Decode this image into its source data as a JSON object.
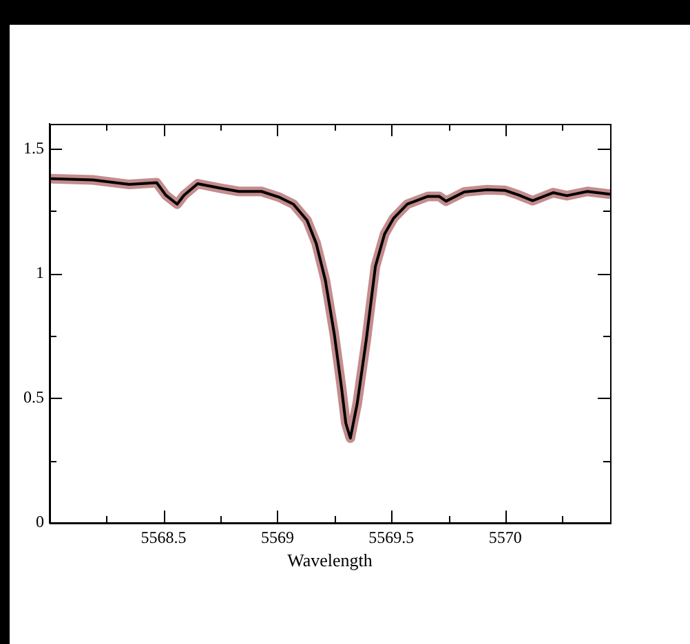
{
  "chart_data": {
    "type": "line",
    "xlabel": "Wavelength",
    "x": [
      5568.01,
      5568.19,
      5568.35,
      5568.47,
      5568.51,
      5568.56,
      5568.59,
      5568.65,
      5568.75,
      5568.83,
      5568.93,
      5569.01,
      5569.07,
      5569.13,
      5569.17,
      5569.21,
      5569.25,
      5569.28,
      5569.3,
      5569.32,
      5569.35,
      5569.39,
      5569.43,
      5569.47,
      5569.51,
      5569.57,
      5569.66,
      5569.71,
      5569.74,
      5569.82,
      5569.92,
      5570.0,
      5570.06,
      5570.12,
      5570.21,
      5570.27,
      5570.36,
      5570.46
    ],
    "series": [
      {
        "color": "#c48c8c",
        "values": [
          1.38,
          1.375,
          1.357,
          1.364,
          1.314,
          1.278,
          1.314,
          1.36,
          1.342,
          1.329,
          1.329,
          1.305,
          1.278,
          1.213,
          1.121,
          0.974,
          0.754,
          0.551,
          0.4,
          0.34,
          0.478,
          0.735,
          1.029,
          1.158,
          1.222,
          1.278,
          1.309,
          1.309,
          1.29,
          1.327,
          1.336,
          1.333,
          1.314,
          1.292,
          1.324,
          1.312,
          1.329,
          1.318
        ]
      },
      {
        "color": "#000000",
        "values": [
          1.38,
          1.375,
          1.357,
          1.364,
          1.314,
          1.278,
          1.314,
          1.36,
          1.342,
          1.329,
          1.329,
          1.305,
          1.278,
          1.213,
          1.121,
          0.974,
          0.754,
          0.551,
          0.4,
          0.34,
          0.478,
          0.735,
          1.029,
          1.158,
          1.222,
          1.278,
          1.309,
          1.309,
          1.29,
          1.327,
          1.336,
          1.333,
          1.314,
          1.292,
          1.324,
          1.312,
          1.329,
          1.318
        ]
      }
    ],
    "xlim": [
      5568.0,
      5570.46
    ],
    "xticks": [
      {
        "value": 5568.25,
        "label": null
      },
      5568.5,
      {
        "value": 5568.75,
        "label": null
      },
      5569,
      {
        "value": 5569.25,
        "label": null
      },
      5569.5,
      {
        "value": 5569.75,
        "label": null
      },
      5570,
      {
        "value": 5570.25,
        "label": null
      }
    ],
    "ylim": [
      0,
      1.6
    ],
    "yticks": [
      0,
      {
        "value": 0.25,
        "label": null
      },
      0.5,
      {
        "value": 0.75,
        "label": null
      },
      1,
      {
        "value": 1.25,
        "label": null
      },
      1.5
    ],
    "grid": false,
    "legend": false,
    "marker": "none",
    "line_style": "solid"
  }
}
